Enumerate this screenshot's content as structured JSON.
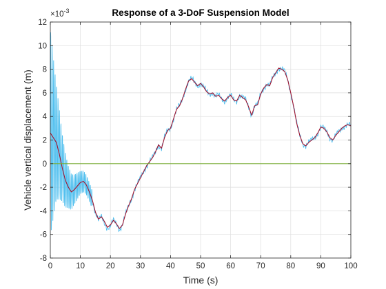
{
  "chart_data": {
    "type": "line",
    "title": "Response of a 3-DoF Suspension Model",
    "xlabel": "Time (s)",
    "ylabel": "Vehicle vertical displacement (m)",
    "xlim": [
      0,
      100
    ],
    "ylim": [
      -0.008,
      0.012
    ],
    "y_exponent_label": "×10",
    "y_exponent_value": "-3",
    "xticks": [
      0,
      10,
      20,
      30,
      40,
      50,
      60,
      70,
      80,
      90,
      100
    ],
    "xtick_labels": [
      "0",
      "10",
      "20",
      "30",
      "40",
      "50",
      "60",
      "70",
      "80",
      "90",
      "100"
    ],
    "yticks": [
      -0.008,
      -0.006,
      -0.004,
      -0.002,
      0,
      0.002,
      0.004,
      0.006,
      0.008,
      0.01,
      0.012
    ],
    "ytick_labels": [
      "-8",
      "-6",
      "-4",
      "-2",
      "0",
      "2",
      "4",
      "6",
      "8",
      "10",
      "12"
    ],
    "grid": true,
    "colors": {
      "raw": "#4DBEEE",
      "filtered": "#A2142F",
      "zero": "#77AC30",
      "axis": "#262626",
      "grid": "#dedede"
    },
    "series": [
      {
        "key": "raw",
        "x": [
          0,
          5,
          10,
          12,
          14,
          15,
          16,
          17,
          18,
          19,
          20,
          21,
          22,
          23,
          24,
          25,
          26,
          27,
          28,
          30,
          32,
          34,
          35,
          36,
          37,
          38,
          39,
          40,
          41,
          42,
          43,
          44,
          45,
          46,
          47,
          48,
          49,
          50,
          51,
          52,
          53,
          54,
          55,
          56,
          57,
          58,
          59,
          60,
          61,
          62,
          63,
          64,
          65,
          66,
          67,
          68,
          69,
          70,
          71,
          72,
          73,
          74,
          75,
          76,
          77,
          78,
          79,
          80,
          81,
          82,
          83,
          84,
          85,
          86,
          87,
          88,
          89,
          90,
          91,
          92,
          93,
          94,
          95,
          96,
          97,
          98,
          99,
          100
        ],
        "y": [
          0.0026,
          -0.0022,
          -0.0015,
          -0.0019,
          -0.0031,
          -0.0042,
          -0.0048,
          -0.0045,
          -0.005,
          -0.0055,
          -0.0053,
          -0.0048,
          -0.0051,
          -0.0056,
          -0.0052,
          -0.0043,
          -0.0036,
          -0.003,
          -0.0022,
          -0.0012,
          -0.0002,
          0.0005,
          0.001,
          0.0016,
          0.0013,
          0.0022,
          0.0028,
          0.003,
          0.0038,
          0.0046,
          0.0049,
          0.0055,
          0.0063,
          0.007,
          0.0072,
          0.0069,
          0.0066,
          0.0068,
          0.0065,
          0.0061,
          0.0059,
          0.006,
          0.0057,
          0.0058,
          0.0055,
          0.0053,
          0.0056,
          0.0058,
          0.0054,
          0.0053,
          0.0058,
          0.0056,
          0.0054,
          0.0048,
          0.0041,
          0.0049,
          0.005,
          0.0059,
          0.0064,
          0.0067,
          0.0066,
          0.0073,
          0.0077,
          0.0081,
          0.008,
          0.0078,
          0.0071,
          0.006,
          0.0048,
          0.0034,
          0.0024,
          0.0017,
          0.0015,
          0.0018,
          0.002,
          0.0022,
          0.0026,
          0.0031,
          0.003,
          0.0027,
          0.0022,
          0.002,
          0.0024,
          0.0027,
          0.003,
          0.0032,
          0.0033,
          0.0032
        ]
      },
      {
        "key": "filtered",
        "x": [
          0,
          1,
          2,
          3,
          4,
          5,
          6,
          7,
          8,
          9,
          10,
          11,
          12,
          13,
          14,
          15,
          16,
          17,
          18,
          19,
          20,
          21,
          22,
          23,
          24,
          25,
          26,
          27,
          28,
          30,
          32,
          34,
          35,
          36,
          37,
          38,
          39,
          40,
          41,
          42,
          43,
          44,
          45,
          46,
          47,
          48,
          49,
          50,
          51,
          52,
          53,
          54,
          55,
          56,
          57,
          58,
          59,
          60,
          61,
          62,
          63,
          64,
          65,
          66,
          67,
          68,
          69,
          70,
          71,
          72,
          73,
          74,
          75,
          76,
          77,
          78,
          79,
          80,
          81,
          82,
          83,
          84,
          85,
          86,
          87,
          88,
          89,
          90,
          91,
          92,
          93,
          94,
          95,
          96,
          97,
          98,
          99,
          100
        ],
        "y": [
          0.0026,
          0.0022,
          0.0018,
          0.0008,
          -0.0004,
          -0.0014,
          -0.002,
          -0.0024,
          -0.0022,
          -0.0019,
          -0.0016,
          -0.0015,
          -0.0018,
          -0.0024,
          -0.0031,
          -0.0041,
          -0.0047,
          -0.0045,
          -0.0049,
          -0.0054,
          -0.0052,
          -0.0048,
          -0.0051,
          -0.0055,
          -0.0052,
          -0.0043,
          -0.0036,
          -0.003,
          -0.0022,
          -0.0012,
          -0.0002,
          0.0005,
          0.001,
          0.0016,
          0.0013,
          0.0022,
          0.0028,
          0.003,
          0.0038,
          0.0046,
          0.0049,
          0.0055,
          0.0063,
          0.007,
          0.0072,
          0.0069,
          0.0066,
          0.0068,
          0.0065,
          0.0061,
          0.0059,
          0.006,
          0.0057,
          0.0058,
          0.0055,
          0.0053,
          0.0056,
          0.0058,
          0.0054,
          0.0053,
          0.0058,
          0.0056,
          0.0054,
          0.0048,
          0.0041,
          0.0049,
          0.005,
          0.0059,
          0.0064,
          0.0067,
          0.0066,
          0.0073,
          0.0077,
          0.0081,
          0.008,
          0.0078,
          0.0071,
          0.006,
          0.0048,
          0.0034,
          0.0024,
          0.0017,
          0.0015,
          0.0018,
          0.002,
          0.0022,
          0.0026,
          0.0031,
          0.003,
          0.0027,
          0.0022,
          0.002,
          0.0024,
          0.0027,
          0.003,
          0.0032,
          0.0033,
          0.0032
        ]
      },
      {
        "key": "zero",
        "x": [
          0,
          100
        ],
        "y": [
          0,
          0
        ]
      }
    ]
  }
}
